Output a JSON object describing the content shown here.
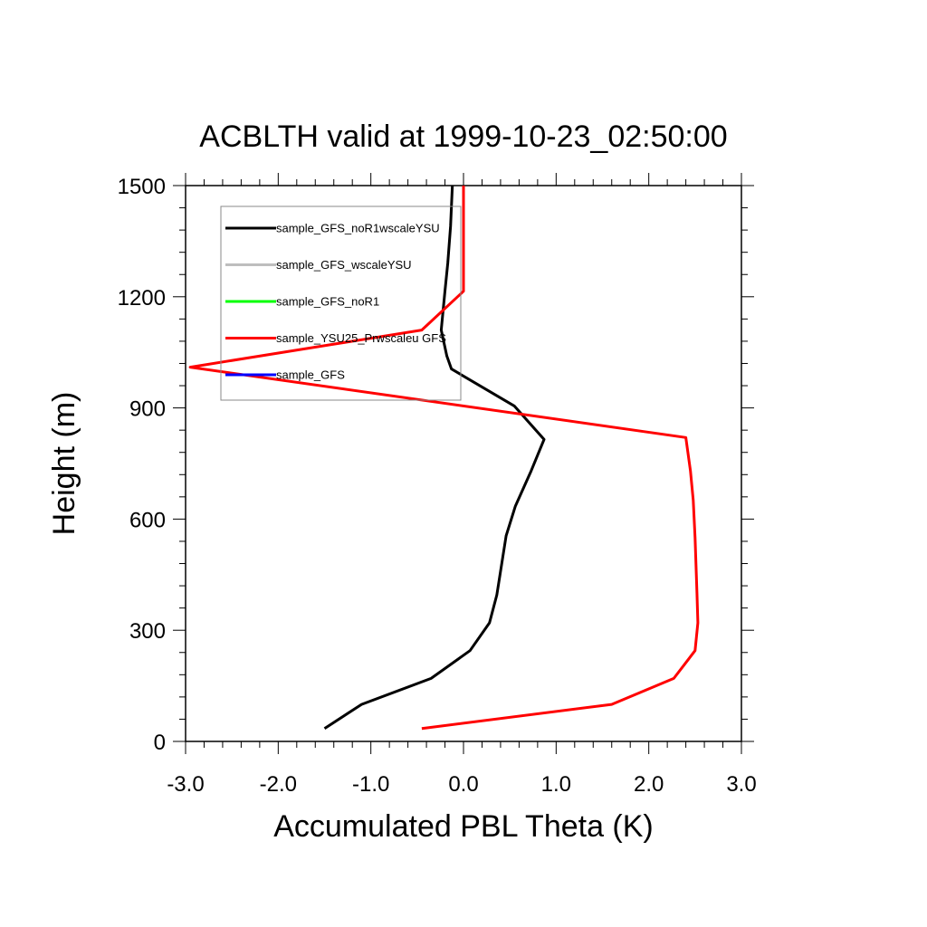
{
  "chart_data": {
    "type": "line",
    "title": "ACBLTH valid at 1999-10-23_02:50:00",
    "xlabel": "Accumulated PBL Theta (K)",
    "ylabel": "Height (m)",
    "xlim": [
      -3.0,
      3.0
    ],
    "ylim": [
      0,
      1500
    ],
    "xticks": [
      -3.0,
      -2.0,
      -1.0,
      0.0,
      1.0,
      2.0,
      3.0
    ],
    "xtick_labels": [
      "-3.0",
      "-2.0",
      "-1.0",
      "0.0",
      "1.0",
      "2.0",
      "3.0"
    ],
    "yticks": [
      0,
      300,
      600,
      900,
      1200,
      1500
    ],
    "ytick_labels": [
      "0",
      "300",
      "600",
      "900",
      "1200",
      "1500"
    ],
    "grid": false,
    "legend_position": "top-left",
    "series": [
      {
        "name": "sample_GFS_noR1wscaleYSU",
        "color": "#000000",
        "x": [
          -1.5,
          -1.1,
          -0.35,
          0.07,
          0.28,
          0.36,
          0.46,
          0.56,
          0.73,
          0.87,
          0.55,
          -0.13,
          -0.18,
          -0.24,
          -0.2,
          -0.17,
          -0.14,
          -0.12
        ],
        "y": [
          35,
          100,
          170,
          245,
          320,
          395,
          555,
          635,
          730,
          815,
          905,
          1005,
          1040,
          1110,
          1215,
          1290,
          1390,
          1500
        ]
      },
      {
        "name": "sample_GFS_wscaleYSU",
        "color": "#bebebe",
        "x": [],
        "y": []
      },
      {
        "name": "sample_GFS_noR1",
        "color": "#00ff00",
        "x": [],
        "y": []
      },
      {
        "name": "sample_YSU25_Prwscaleu GFS",
        "color": "#ff0000",
        "x": [
          -0.45,
          1.6,
          2.27,
          2.5,
          2.53,
          2.52,
          2.5,
          2.48,
          2.45,
          2.4,
          -2.95,
          -0.45,
          0.0,
          0.0,
          0.0
        ],
        "y": [
          35,
          100,
          170,
          245,
          320,
          400,
          550,
          650,
          730,
          820,
          1010,
          1110,
          1215,
          1300,
          1500
        ]
      },
      {
        "name": "sample_GFS",
        "color": "#0000ff",
        "x": [],
        "y": []
      }
    ]
  }
}
